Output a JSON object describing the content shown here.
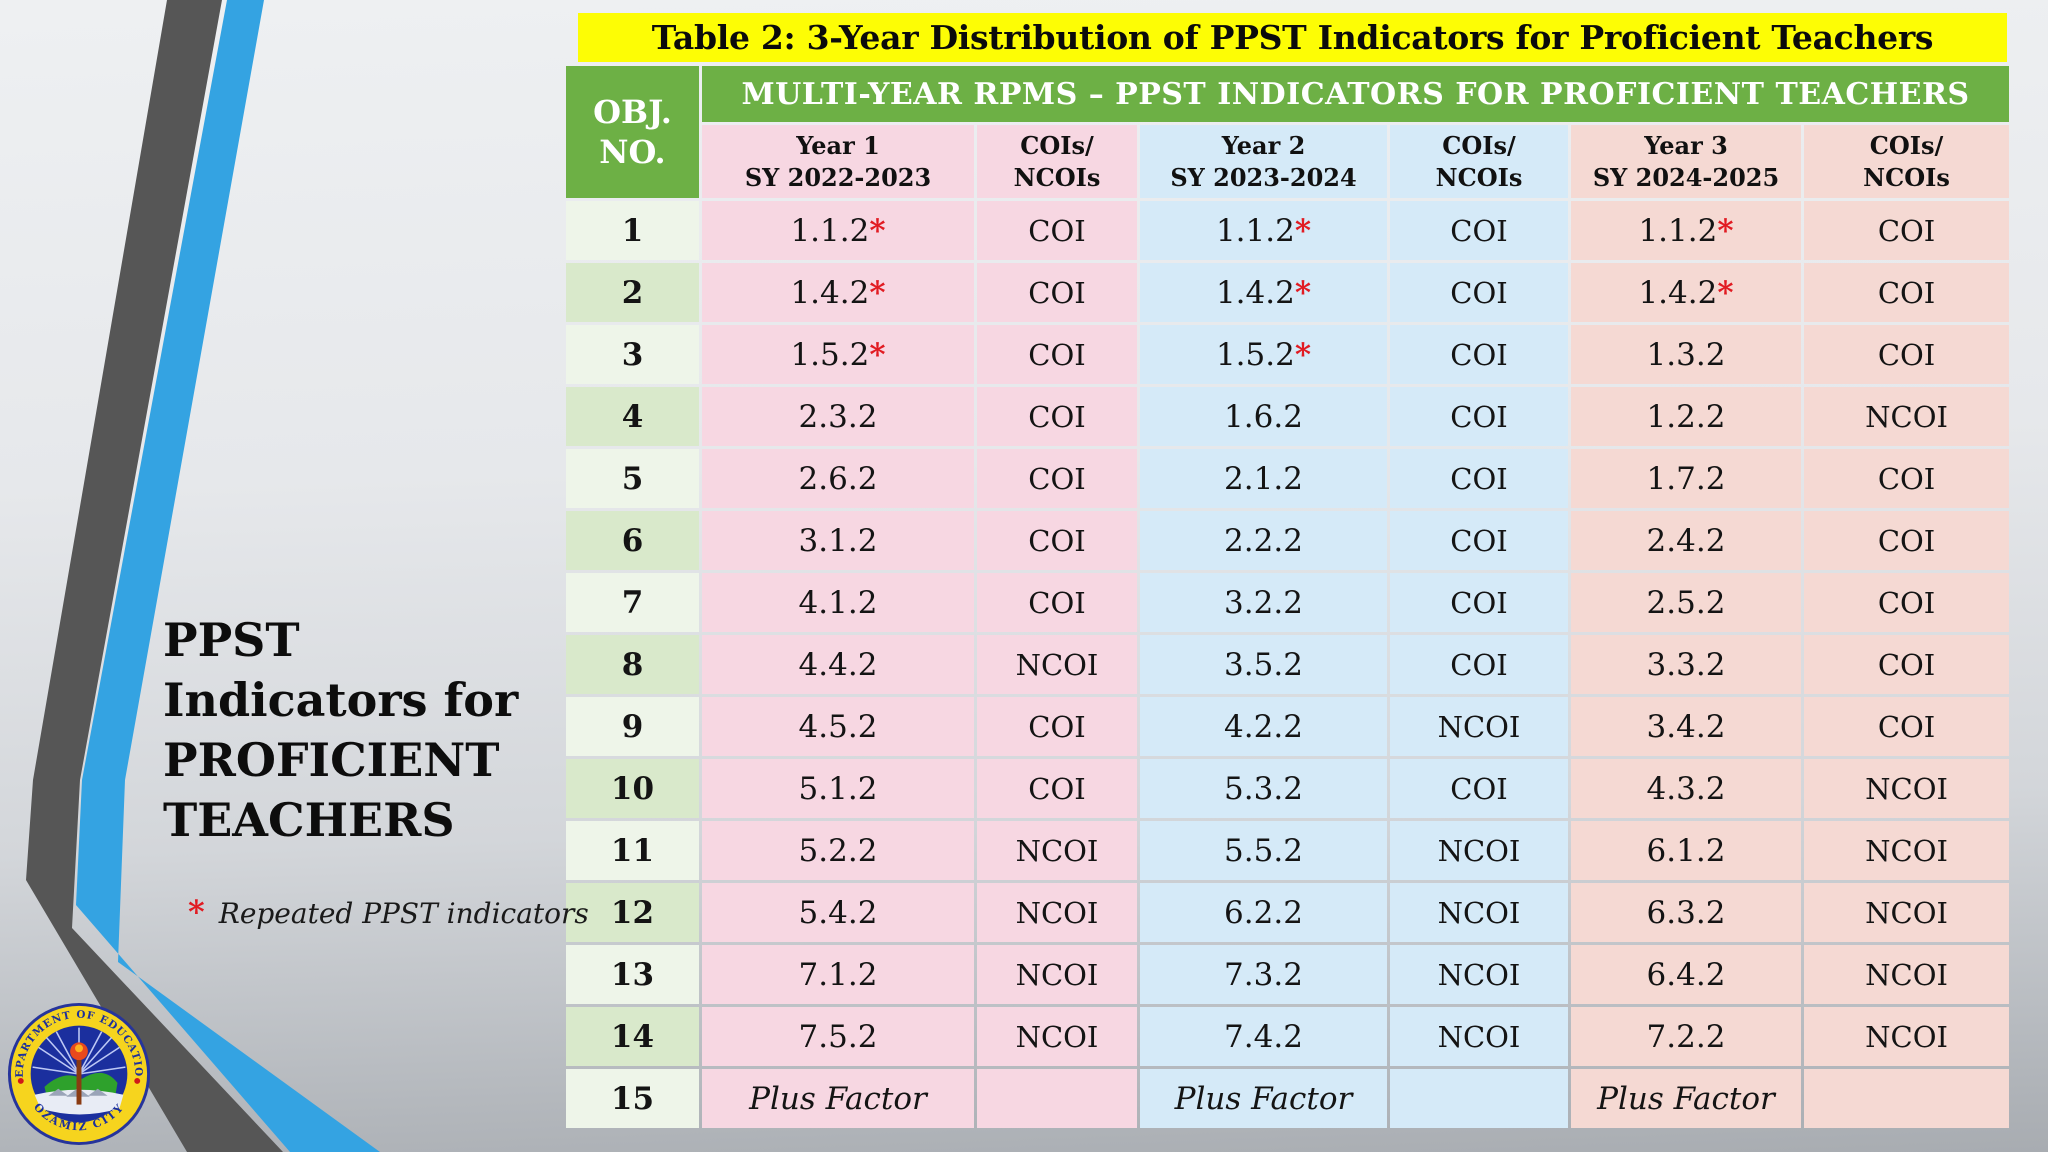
{
  "title": "Table 2: 3-Year Distribution of PPST Indicators for Proficient Teachers",
  "sidebar": {
    "title_lines": [
      "PPST",
      "Indicators for",
      "PROFICIENT",
      "TEACHERS"
    ],
    "footnote_marker": "*",
    "footnote_text": "Repeated PPST indicators"
  },
  "logo": {
    "ring_top": "DEPARTMENT OF EDUCATION",
    "ring_bottom": "OZAMIZ CITY"
  },
  "table": {
    "obj_header_lines": [
      "OBJ.",
      "NO."
    ],
    "banner": "MULTI-YEAR RPMS – PPST INDICATORS FOR PROFICIENT TEACHERS",
    "columns": [
      {
        "l1": "Year 1",
        "l2": "SY 2022-2023"
      },
      {
        "l1": "COIs/",
        "l2": "NCOIs"
      },
      {
        "l1": "Year 2",
        "l2": "SY 2023-2024"
      },
      {
        "l1": "COIs/",
        "l2": "NCOIs"
      },
      {
        "l1": "Year 3",
        "l2": "SY 2024-2025"
      },
      {
        "l1": "COIs/",
        "l2": "NCOIs"
      }
    ],
    "rows": [
      {
        "obj": "1",
        "cells": [
          "1.1.2*",
          "COI",
          "1.1.2*",
          "COI",
          "1.1.2*",
          "COI"
        ]
      },
      {
        "obj": "2",
        "cells": [
          "1.4.2*",
          "COI",
          "1.4.2*",
          "COI",
          "1.4.2*",
          "COI"
        ]
      },
      {
        "obj": "3",
        "cells": [
          "1.5.2*",
          "COI",
          "1.5.2*",
          "COI",
          "1.3.2",
          "COI"
        ]
      },
      {
        "obj": "4",
        "cells": [
          "2.3.2",
          "COI",
          "1.6.2",
          "COI",
          "1.2.2",
          "NCOI"
        ]
      },
      {
        "obj": "5",
        "cells": [
          "2.6.2",
          "COI",
          "2.1.2",
          "COI",
          "1.7.2",
          "COI"
        ]
      },
      {
        "obj": "6",
        "cells": [
          "3.1.2",
          "COI",
          "2.2.2",
          "COI",
          "2.4.2",
          "COI"
        ]
      },
      {
        "obj": "7",
        "cells": [
          "4.1.2",
          "COI",
          "3.2.2",
          "COI",
          "2.5.2",
          "COI"
        ]
      },
      {
        "obj": "8",
        "cells": [
          "4.4.2",
          "NCOI",
          "3.5.2",
          "COI",
          "3.3.2",
          "COI"
        ]
      },
      {
        "obj": "9",
        "cells": [
          "4.5.2",
          "COI",
          "4.2.2",
          "NCOI",
          "3.4.2",
          "COI"
        ]
      },
      {
        "obj": "10",
        "cells": [
          "5.1.2",
          "COI",
          "5.3.2",
          "COI",
          "4.3.2",
          "NCOI"
        ]
      },
      {
        "obj": "11",
        "cells": [
          "5.2.2",
          "NCOI",
          "5.5.2",
          "NCOI",
          "6.1.2",
          "NCOI"
        ]
      },
      {
        "obj": "12",
        "cells": [
          "5.4.2",
          "NCOI",
          "6.2.2",
          "NCOI",
          "6.3.2",
          "NCOI"
        ]
      },
      {
        "obj": "13",
        "cells": [
          "7.1.2",
          "NCOI",
          "7.3.2",
          "NCOI",
          "6.4.2",
          "NCOI"
        ]
      },
      {
        "obj": "14",
        "cells": [
          "7.5.2",
          "NCOI",
          "7.4.2",
          "NCOI",
          "7.2.2",
          "NCOI"
        ]
      },
      {
        "obj": "15",
        "cells": [
          "Plus Factor",
          "",
          "Plus Factor",
          "",
          "Plus Factor",
          ""
        ]
      }
    ]
  },
  "colors": {
    "highlight_yellow": "#fdfd05",
    "header_green": "#6db045",
    "row_green_light": "#eef5e9",
    "row_green_dark": "#d9e9cb",
    "year1_pink": "#f7d7e2",
    "year2_blue": "#d5eaf8",
    "year3_peach": "#f5d9d3",
    "asterisk_red": "#e11b22",
    "stripe_dark": "#565656",
    "stripe_blue": "#34a3e2"
  }
}
